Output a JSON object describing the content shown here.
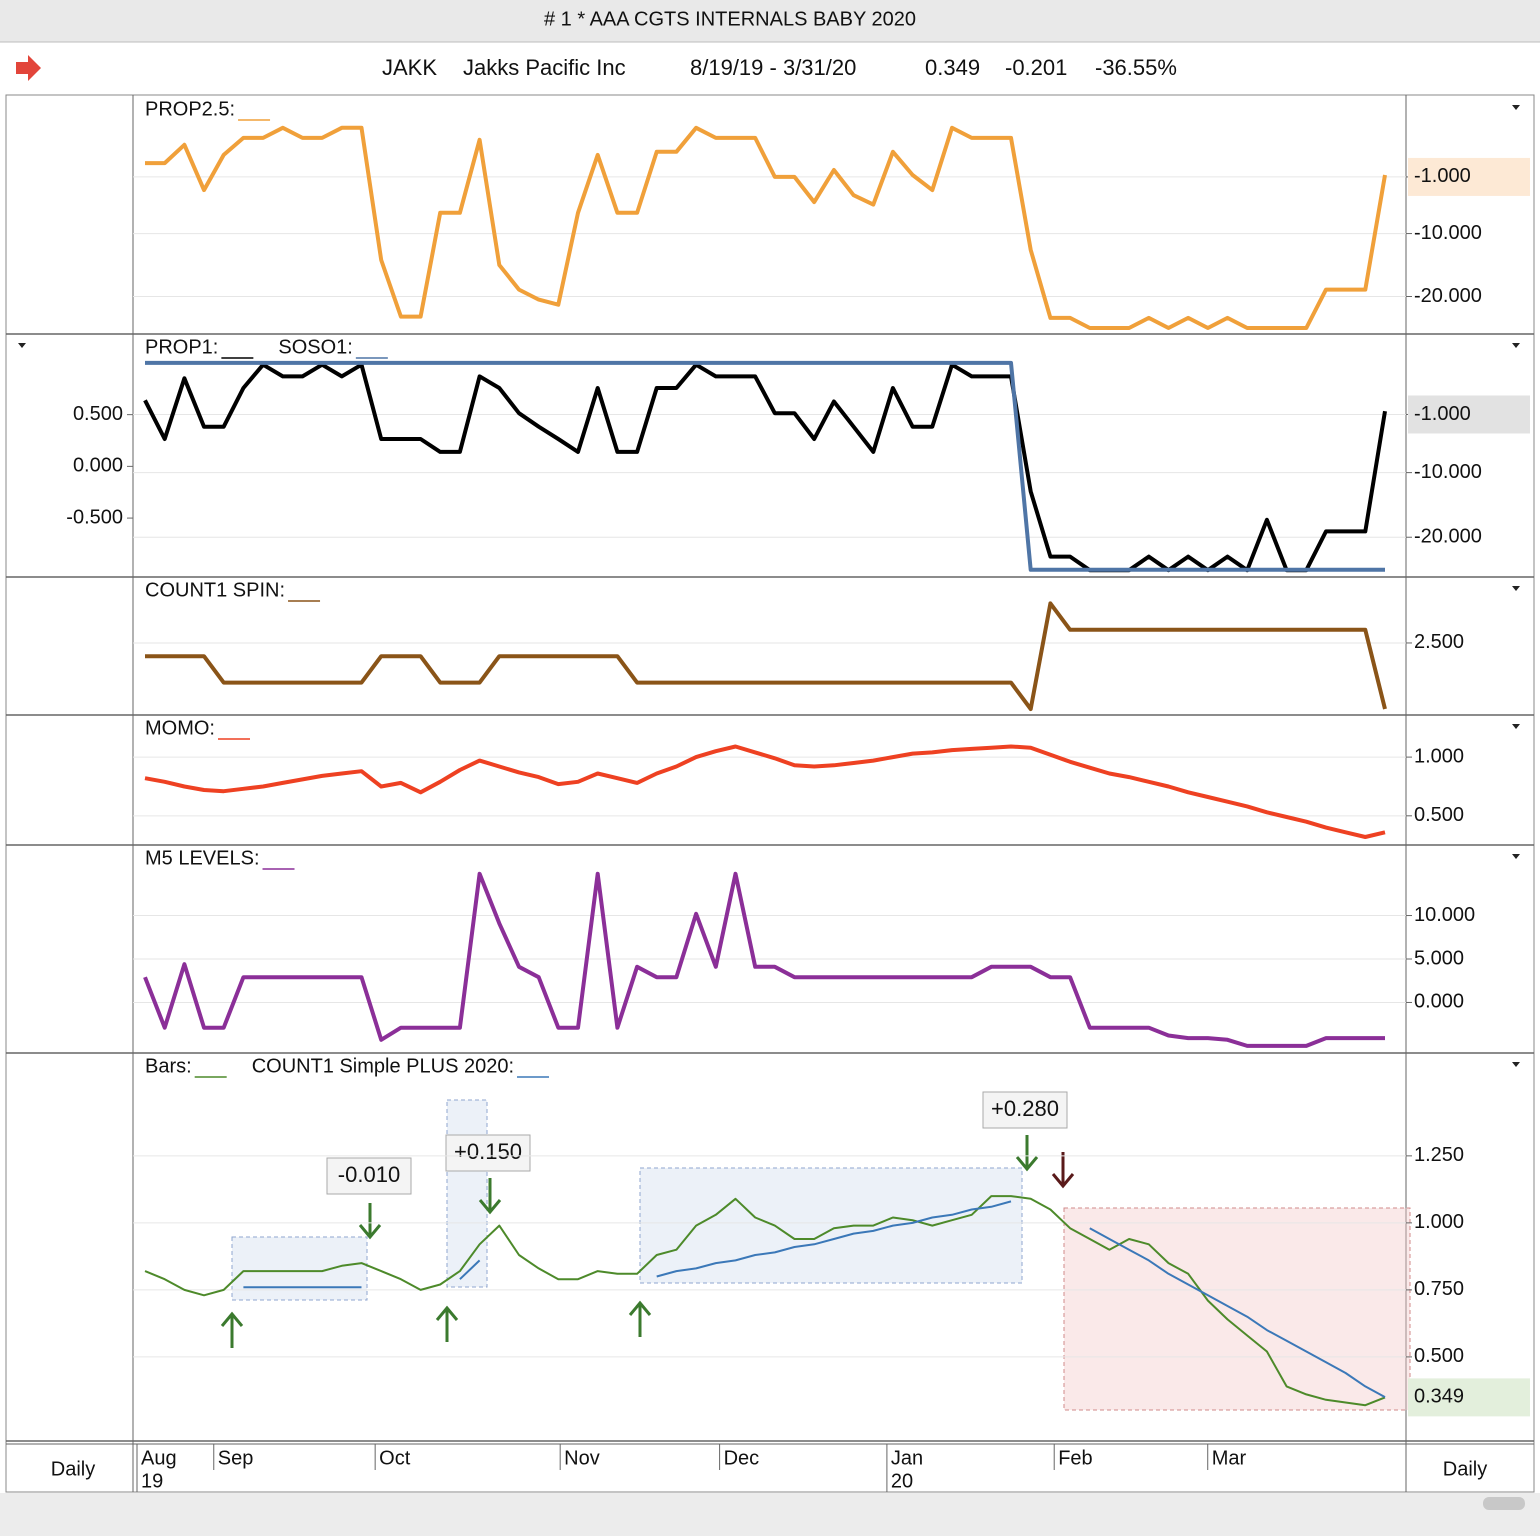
{
  "header": {
    "window_title": "# 1 * AAA  CGTS INTERNALS BABY 2020",
    "symbol": "JAKK",
    "company": "Jakks Pacific Inc",
    "date_range": "8/19/19 - 3/31/20",
    "last": "0.349",
    "change": "-0.201",
    "change_pct": "-36.55%"
  },
  "footer": {
    "left": "Daily",
    "right": "Daily"
  },
  "chart_data": [
    {
      "type": "line",
      "xlim": [
        0,
        63
      ],
      "ylim": [
        -25.8,
        11.7
      ],
      "yticks": [
        {
          "value": -1,
          "label": "-1.000"
        },
        {
          "value": -10,
          "label": "-10.000"
        },
        {
          "value": -20,
          "label": "-20.000"
        }
      ],
      "series": [
        {
          "name": "PROP2.5:",
          "color": "#f0a03a",
          "values": [
            1.2,
            1.2,
            4.1,
            -3.1,
            2.5,
            5.2,
            5.2,
            6.8,
            5.2,
            5.2,
            6.8,
            6.8,
            -14.2,
            -23.2,
            -23.2,
            -6.7,
            -6.7,
            4.9,
            -15.0,
            -18.9,
            -20.5,
            -21.3,
            -6.7,
            2.5,
            -6.7,
            -6.7,
            3.0,
            3.0,
            6.8,
            5.2,
            5.2,
            5.2,
            -1.0,
            -1.0,
            -5.0,
            0.1,
            -3.9,
            -5.4,
            3.0,
            -0.7,
            -3.1,
            6.8,
            5.2,
            5.2,
            5.2,
            -12.6,
            -23.4,
            -23.4,
            -25.0,
            -25.0,
            -25.0,
            -23.4,
            -25.0,
            -23.4,
            -25.0,
            -23.4,
            -25.0,
            -25.0,
            -25.0,
            -25.0,
            -18.9,
            -18.9,
            -18.9,
            -0.7
          ]
        }
      ]
    },
    {
      "type": "line",
      "xlim": [
        0,
        63
      ],
      "ylim": [
        -26,
        11.3
      ],
      "yticks": [
        {
          "value": -1,
          "label": "-1.000"
        },
        {
          "value": -10,
          "label": "-10.000"
        },
        {
          "value": -20,
          "label": "-20.000"
        }
      ],
      "y2lim": [
        -1.06,
        1.27
      ],
      "y2ticks": [
        {
          "value": 0.5,
          "label": "0.500"
        },
        {
          "value": 0,
          "label": "0.000"
        },
        {
          "value": -0.5,
          "label": "-0.500"
        }
      ],
      "series": [
        {
          "name": "PROP1:",
          "color": "#000000",
          "values": [
            1.2,
            -4.8,
            4.6,
            -2.9,
            -2.9,
            3.1,
            6.7,
            4.9,
            4.9,
            6.7,
            4.9,
            6.7,
            -4.8,
            -4.8,
            -4.8,
            -6.8,
            -6.8,
            4.9,
            3.1,
            -0.8,
            -2.9,
            -4.8,
            -6.8,
            3.1,
            -6.8,
            -6.8,
            3.1,
            3.1,
            6.7,
            4.9,
            4.9,
            4.9,
            -0.8,
            -0.8,
            -4.8,
            1.0,
            -2.9,
            -6.8,
            3.1,
            -2.9,
            -2.9,
            6.7,
            4.9,
            4.9,
            4.9,
            -12.9,
            -23.0,
            -23.0,
            -25.1,
            -25.1,
            -25.1,
            -23.0,
            -25.1,
            -23.0,
            -25.1,
            -23.0,
            -25.1,
            -17.3,
            -25.1,
            -25.1,
            -19.1,
            -19.1,
            -19.1,
            -0.5
          ]
        },
        {
          "name": "SOSO1:",
          "color": "#4f75a6",
          "axis": "y2",
          "values": [
            1,
            1,
            1,
            1,
            1,
            1,
            1,
            1,
            1,
            1,
            1,
            1,
            1,
            1,
            1,
            1,
            1,
            1,
            1,
            1,
            1,
            1,
            1,
            1,
            1,
            1,
            1,
            1,
            1,
            1,
            1,
            1,
            1,
            1,
            1,
            1,
            1,
            1,
            1,
            1,
            1,
            1,
            1,
            1,
            1,
            -1,
            -1,
            -1,
            -1,
            -1,
            -1,
            -1,
            -1,
            -1,
            -1,
            -1,
            -1,
            -1,
            -1,
            -1,
            -1,
            -1,
            -1,
            -1
          ]
        }
      ]
    },
    {
      "type": "line",
      "xlim": [
        0,
        63
      ],
      "ylim": [
        -0.19,
        4.96
      ],
      "yticks": [
        {
          "value": 2.5,
          "label": "2.500"
        }
      ],
      "series": [
        {
          "name": "COUNT1 SPIN:",
          "color": "#8a5418",
          "values": [
            2,
            2,
            2,
            2,
            1,
            1,
            1,
            1,
            1,
            1,
            1,
            1,
            2,
            2,
            2,
            1,
            1,
            1,
            2,
            2,
            2,
            2,
            2,
            2,
            2,
            1,
            1,
            1,
            1,
            1,
            1,
            1,
            1,
            1,
            1,
            1,
            1,
            1,
            1,
            1,
            1,
            1,
            1,
            1,
            1,
            0,
            4,
            3,
            3,
            3,
            3,
            3,
            3,
            3,
            3,
            3,
            3,
            3,
            3,
            3,
            3,
            3,
            3,
            0
          ]
        }
      ]
    },
    {
      "type": "line",
      "xlim": [
        0,
        63
      ],
      "ylim": [
        0.26,
        1.35
      ],
      "yticks": [
        {
          "value": 1,
          "label": "1.000"
        },
        {
          "value": 0.5,
          "label": "0.500"
        }
      ],
      "series": [
        {
          "name": "MOMO:",
          "color": "#ee4122",
          "values": [
            0.82,
            0.79,
            0.75,
            0.72,
            0.71,
            0.73,
            0.75,
            0.78,
            0.81,
            0.84,
            0.86,
            0.88,
            0.75,
            0.78,
            0.7,
            0.79,
            0.89,
            0.97,
            0.92,
            0.87,
            0.83,
            0.77,
            0.79,
            0.86,
            0.82,
            0.78,
            0.86,
            0.92,
            1.0,
            1.05,
            1.09,
            1.04,
            0.99,
            0.93,
            0.92,
            0.93,
            0.95,
            0.97,
            1.0,
            1.03,
            1.04,
            1.06,
            1.07,
            1.08,
            1.09,
            1.08,
            1.02,
            0.96,
            0.91,
            0.86,
            0.83,
            0.79,
            0.75,
            0.7,
            0.66,
            0.62,
            0.58,
            0.53,
            0.49,
            0.45,
            0.4,
            0.36,
            0.32,
            0.36
          ]
        }
      ]
    },
    {
      "type": "line",
      "xlim": [
        0,
        63
      ],
      "ylim": [
        -5.7,
        18.0
      ],
      "yticks": [
        {
          "value": 10,
          "label": "10.000"
        },
        {
          "value": 5,
          "label": "5.000"
        },
        {
          "value": 0,
          "label": "0.000"
        }
      ],
      "series": [
        {
          "name": "M5 LEVELS:",
          "color": "#8b2f98",
          "values": [
            2.9,
            -2.9,
            4.4,
            -2.9,
            -2.9,
            2.9,
            2.9,
            2.9,
            2.9,
            2.9,
            2.9,
            2.9,
            -4.3,
            -2.9,
            -2.9,
            -2.9,
            -2.9,
            14.8,
            9.1,
            4.1,
            2.9,
            -2.9,
            -2.9,
            14.8,
            -2.9,
            4.1,
            2.9,
            2.9,
            10.2,
            4.1,
            14.8,
            4.1,
            4.1,
            2.9,
            2.9,
            2.9,
            2.9,
            2.9,
            2.9,
            2.9,
            2.9,
            2.9,
            2.9,
            4.1,
            4.1,
            4.1,
            2.9,
            2.9,
            -2.9,
            -2.9,
            -2.9,
            -2.9,
            -3.8,
            -4.1,
            -4.1,
            -4.3,
            -5.0,
            -5.0,
            -5.0,
            -5.0,
            -4.1,
            -4.1,
            -4.1,
            -4.1
          ]
        }
      ]
    },
    {
      "type": "line",
      "xlim": [
        0,
        63
      ],
      "ylim": [
        0.19,
        1.63
      ],
      "yticks": [
        {
          "value": 1.25,
          "label": "1.250"
        },
        {
          "value": 1,
          "label": "1.000"
        },
        {
          "value": 0.75,
          "label": "0.750"
        },
        {
          "value": 0.5,
          "label": "0.500"
        }
      ],
      "xticks": [
        {
          "value": 0,
          "label": "Aug"
        },
        {
          "value": 3.9,
          "label": "Sep"
        },
        {
          "value": 12.1,
          "label": "Oct"
        },
        {
          "value": 21.5,
          "label": "Nov"
        },
        {
          "value": 29.6,
          "label": "Dec"
        },
        {
          "value": 38.1,
          "label": "Jan"
        },
        {
          "value": 46.6,
          "label": "Feb"
        },
        {
          "value": 54.4,
          "label": "Mar"
        }
      ],
      "xyears": [
        {
          "value": 0,
          "label": "19"
        },
        {
          "value": 38.1,
          "label": "20"
        }
      ],
      "annotations": [
        "-0.010",
        "+0.150",
        "+0.280"
      ],
      "series": [
        {
          "name": "Bars:",
          "color": "#4d8a2a",
          "values": [
            0.82,
            0.79,
            0.75,
            0.73,
            0.75,
            0.82,
            0.82,
            0.82,
            0.82,
            0.82,
            0.84,
            0.85,
            0.82,
            0.79,
            0.75,
            0.77,
            0.82,
            0.92,
            0.99,
            0.88,
            0.83,
            0.79,
            0.79,
            0.82,
            0.81,
            0.81,
            0.88,
            0.9,
            0.99,
            1.03,
            1.09,
            1.02,
            0.99,
            0.94,
            0.94,
            0.98,
            0.99,
            0.99,
            1.02,
            1.01,
            0.99,
            1.01,
            1.03,
            1.1,
            1.1,
            1.09,
            1.05,
            0.98,
            0.94,
            0.9,
            0.94,
            0.92,
            0.85,
            0.81,
            0.71,
            0.64,
            0.58,
            0.52,
            0.39,
            0.36,
            0.34,
            0.33,
            0.32,
            0.349
          ]
        },
        {
          "name": "COUNT1 Simple PLUS 2020:",
          "color": "#3b78b8",
          "values": [
            null,
            null,
            null,
            null,
            null,
            0.76,
            0.76,
            0.76,
            0.76,
            0.76,
            0.76,
            0.76,
            null,
            null,
            null,
            null,
            0.79,
            0.86,
            null,
            null,
            null,
            null,
            null,
            null,
            null,
            null,
            0.8,
            0.82,
            0.83,
            0.85,
            0.86,
            0.88,
            0.89,
            0.91,
            0.92,
            0.94,
            0.96,
            0.97,
            0.99,
            1.0,
            1.02,
            1.03,
            1.05,
            1.06,
            1.08,
            null,
            null,
            null,
            0.98,
            0.94,
            0.9,
            0.86,
            0.81,
            0.77,
            0.73,
            0.69,
            0.65,
            0.6,
            0.56,
            0.52,
            0.48,
            0.44,
            0.39,
            0.35
          ]
        }
      ]
    }
  ]
}
